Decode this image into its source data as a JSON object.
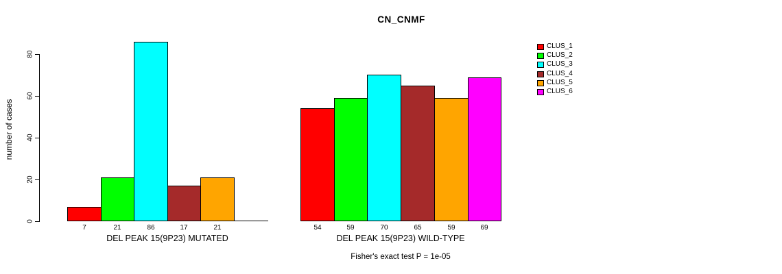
{
  "chart_data": {
    "type": "bar",
    "title": "CN_CNMF",
    "ylabel": "number of cases",
    "ylim": [
      0,
      80
    ],
    "yticks": [
      0,
      20,
      40,
      60,
      80
    ],
    "grid": false,
    "legend_position": "right-outside",
    "categories": [
      "CLUS_1",
      "CLUS_2",
      "CLUS_3",
      "CLUS_4",
      "CLUS_5",
      "CLUS_6"
    ],
    "colors": [
      "#FF0000",
      "#00FF00",
      "#00FFFF",
      "#A52A2A",
      "#FFA500",
      "#FF00FF"
    ],
    "groups": [
      {
        "xlabel": "DEL PEAK 15(9P23) MUTATED",
        "values": [
          7,
          21,
          86,
          17,
          21,
          0
        ],
        "bar_labels": [
          "7",
          "21",
          "86",
          "17",
          "21",
          ""
        ]
      },
      {
        "xlabel": "DEL PEAK 15(9P23) WILD-TYPE",
        "values": [
          54,
          59,
          70,
          65,
          59,
          69
        ],
        "bar_labels": [
          "54",
          "59",
          "70",
          "65",
          "59",
          "69"
        ]
      }
    ],
    "annotation": "Fisher's exact test P = 1e-05"
  }
}
